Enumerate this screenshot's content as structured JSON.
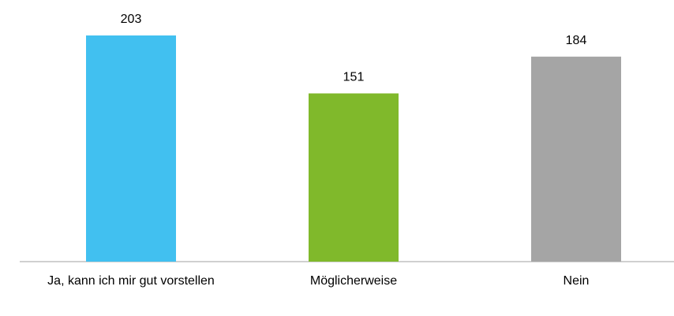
{
  "chart_data": {
    "type": "bar",
    "categories": [
      "Ja, kann ich mir gut vorstellen",
      "Möglicherweise",
      "Nein"
    ],
    "values": [
      203,
      151,
      184
    ],
    "colors": [
      "#41c0f0",
      "#80b92b",
      "#a5a5a5"
    ]
  }
}
